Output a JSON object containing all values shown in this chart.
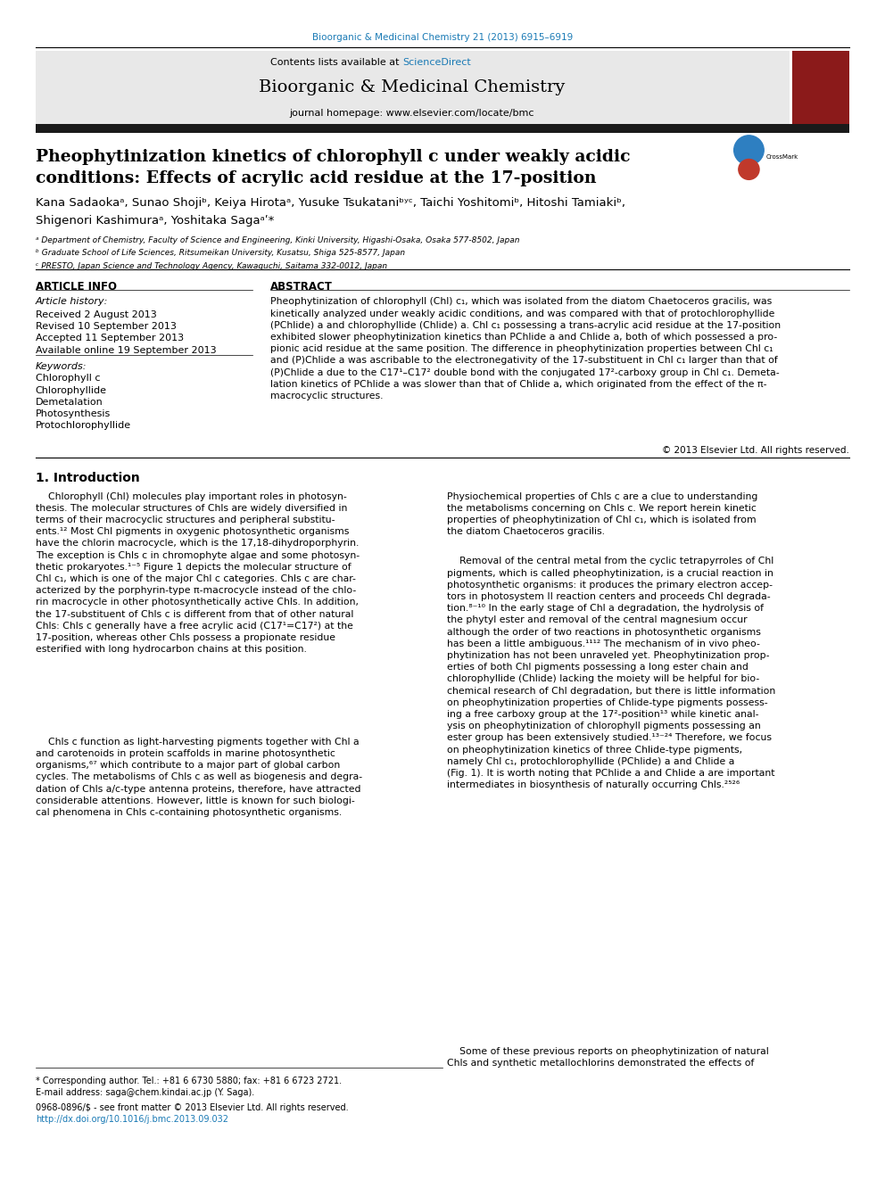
{
  "page_width": 9.92,
  "page_height": 13.23,
  "bg_color": "#ffffff",
  "top_journal_ref": "Bioorganic & Medicinal Chemistry 21 (2013) 6915–6919",
  "top_journal_ref_color": "#1a7ab5",
  "journal_name": "Bioorganic & Medicinal Chemistry",
  "journal_homepage": "journal homepage: www.elsevier.com/locate/bmc",
  "contents_text": "Contents lists available at ",
  "sciencedirect_text": "ScienceDirect",
  "sciencedirect_color": "#1a7ab5",
  "elsevier_color": "#f47920",
  "header_bg": "#e8e8e8",
  "dark_bar_color": "#1a1a1a",
  "affil_a": "ᵃ Department of Chemistry, Faculty of Science and Engineering, Kinki University, Higashi-Osaka, Osaka 577-8502, Japan",
  "affil_b": "ᵇ Graduate School of Life Sciences, Ritsumeikan University, Kusatsu, Shiga 525-8577, Japan",
  "affil_c": "ᶜ PRESTO, Japan Science and Technology Agency, Kawaguchi, Saitama 332-0012, Japan",
  "keywords": [
    "Chlorophyll c",
    "Chlorophyllide",
    "Demetalation",
    "Photosynthesis",
    "Protochlorophyllide"
  ],
  "abstract_text": "Pheophytinization of chlorophyll (Chl) c₁, which was isolated from the diatom Chaetoceros gracilis, was kinetically analyzed under weakly acidic conditions, and was compared with that of protochlorophyllide (PChlide) a and chlorophyllide (Chlide) a. Chl c₁ possessing a trans-acrylic acid residue at the 17-position exhibited slower pheophytinization kinetics than PChlide a and Chlide a, both of which possessed a propionic acid residue at the same position. The difference in pheophytinization properties between Chl c₁ and (P)Chlide a was ascribable to the electronegativity of the 17-substituent in Chl c₁ larger than that of (P)Chlide a due to the C17¹–C17² double bond with the conjugated 17²-carboxy group in Chl c₁. Demetalation kinetics of PChlide a was slower than that of Chlide a, which originated from the effect of the π-macrocyclic structures.",
  "copyright": "© 2013 Elsevier Ltd. All rights reserved.",
  "footnote_star": "* Corresponding author. Tel.: +81 6 6730 5880; fax: +81 6 6723 2721.",
  "footnote_email": "E-mail address: saga@chem.kindai.ac.jp (Y. Saga).",
  "footnote_issn": "0968-0896/$ - see front matter © 2013 Elsevier Ltd. All rights reserved.",
  "footnote_doi": "http://dx.doi.org/10.1016/j.bmc.2013.09.032"
}
